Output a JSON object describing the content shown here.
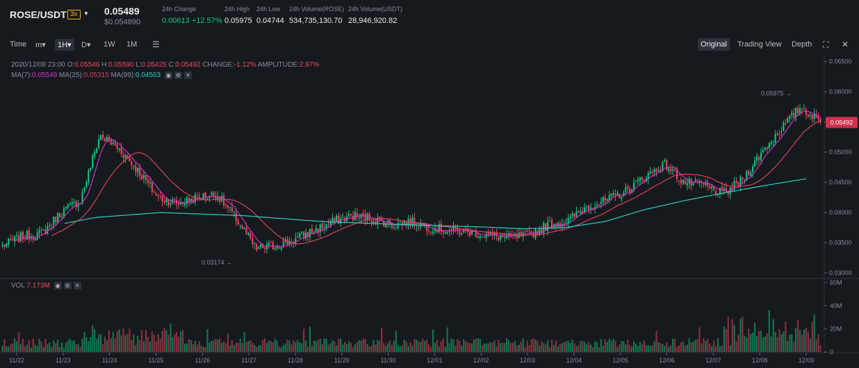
{
  "header": {
    "pair": "ROSE/USDT",
    "leverage": "3x",
    "price": "0.05489",
    "price_usd": "$0.054890",
    "stats": [
      {
        "label": "24h Change",
        "value": "0.00613 +12.57%",
        "up": true
      },
      {
        "label": "24h High",
        "value": "0.05975"
      },
      {
        "label": "24h Low",
        "value": "0.04744"
      },
      {
        "label": "24h Volume(ROSE)",
        "value": "534,735,130.70"
      },
      {
        "label": "24h Volume(USDT)",
        "value": "28,946,920.82"
      }
    ]
  },
  "toolbar": {
    "time_label": "Time",
    "intervals": [
      "m▾",
      "1H▾",
      "D▾",
      "1W",
      "1M"
    ],
    "active_interval": "1H▾",
    "views": [
      "Original",
      "Trading View",
      "Depth"
    ],
    "active_view": "Original"
  },
  "info": {
    "date": "2020/12/08 23:00",
    "o_label": "O:",
    "o": "0.05546",
    "h_label": "H:",
    "h": "0.05590",
    "l_label": "L:",
    "l": "0.05425",
    "c_label": "C:",
    "c": "0.05492",
    "change_label": "CHANGE:",
    "change": "-1.12%",
    "amp_label": "AMPLITUDE:",
    "amp": "2.97%",
    "ma7_label": "MA(7):",
    "ma7": "0.05549",
    "ma25_label": "MA(25):",
    "ma25": "0.05315",
    "ma99_label": "MA(99):",
    "ma99": "0.04563",
    "vol_label": "VOL",
    "vol": "7.173M"
  },
  "colors": {
    "up": "#0ecb81",
    "down": "#f6465d",
    "ma7": "#d033d0",
    "ma25": "#e0405a",
    "ma99": "#2fcfc3"
  },
  "chart_data": {
    "type": "candlestick",
    "x_ticks": [
      "11/22",
      "11/23",
      "11/24",
      "11/25",
      "11/26",
      "11/27",
      "11/28",
      "11/29",
      "11/30",
      "12/01",
      "12/02",
      "12/03",
      "12/04",
      "12/05",
      "12/06",
      "12/07",
      "12/08",
      "12/09"
    ],
    "price_ticks": [
      "0.06500",
      "0.06000",
      "0.05500",
      "0.05000",
      "0.04500",
      "0.04000",
      "0.03500",
      "0.03000"
    ],
    "price_ylim": [
      0.0292,
      0.066
    ],
    "volume_ticks": [
      "60M",
      "40M",
      "20M",
      "0"
    ],
    "volume_ylim": [
      0,
      60
    ],
    "last_price_label": "0.05492",
    "high_marker": "0.05975",
    "low_marker": "0.03174",
    "close_anchors": [
      [
        0,
        0.0345
      ],
      [
        1,
        0.036
      ],
      [
        2,
        0.0365
      ],
      [
        3,
        0.04
      ],
      [
        4,
        0.042
      ],
      [
        5,
        0.0528
      ],
      [
        6,
        0.0505
      ],
      [
        7,
        0.0468
      ],
      [
        8,
        0.0425
      ],
      [
        9,
        0.0415
      ],
      [
        10,
        0.0425
      ],
      [
        11,
        0.043
      ],
      [
        12,
        0.039
      ],
      [
        13,
        0.034
      ],
      [
        14,
        0.0345
      ],
      [
        15,
        0.0355
      ],
      [
        16,
        0.037
      ],
      [
        17,
        0.0385
      ],
      [
        18,
        0.0395
      ],
      [
        19,
        0.039
      ],
      [
        20,
        0.038
      ],
      [
        21,
        0.0385
      ],
      [
        22,
        0.0375
      ],
      [
        23,
        0.037
      ],
      [
        24,
        0.0368
      ],
      [
        25,
        0.0362
      ],
      [
        26,
        0.0358
      ],
      [
        27,
        0.0362
      ],
      [
        28,
        0.038
      ],
      [
        29,
        0.0385
      ],
      [
        30,
        0.041
      ],
      [
        31,
        0.042
      ],
      [
        32,
        0.0435
      ],
      [
        33,
        0.046
      ],
      [
        34,
        0.048
      ],
      [
        35,
        0.045
      ],
      [
        36,
        0.0445
      ],
      [
        37,
        0.043
      ],
      [
        38,
        0.0455
      ],
      [
        39,
        0.05
      ],
      [
        40,
        0.054
      ],
      [
        41,
        0.0575
      ],
      [
        42,
        0.0549
      ]
    ],
    "ma99_anchors": [
      [
        0.08,
        0.0382
      ],
      [
        0.12,
        0.0392
      ],
      [
        0.2,
        0.04
      ],
      [
        0.3,
        0.0395
      ],
      [
        0.4,
        0.0385
      ],
      [
        0.5,
        0.038
      ],
      [
        0.6,
        0.0376
      ],
      [
        0.65,
        0.0373
      ],
      [
        0.7,
        0.0375
      ],
      [
        0.75,
        0.0385
      ],
      [
        0.8,
        0.0405
      ],
      [
        0.85,
        0.042
      ],
      [
        0.9,
        0.0433
      ],
      [
        0.95,
        0.0445
      ],
      [
        1.0,
        0.0456
      ]
    ]
  }
}
